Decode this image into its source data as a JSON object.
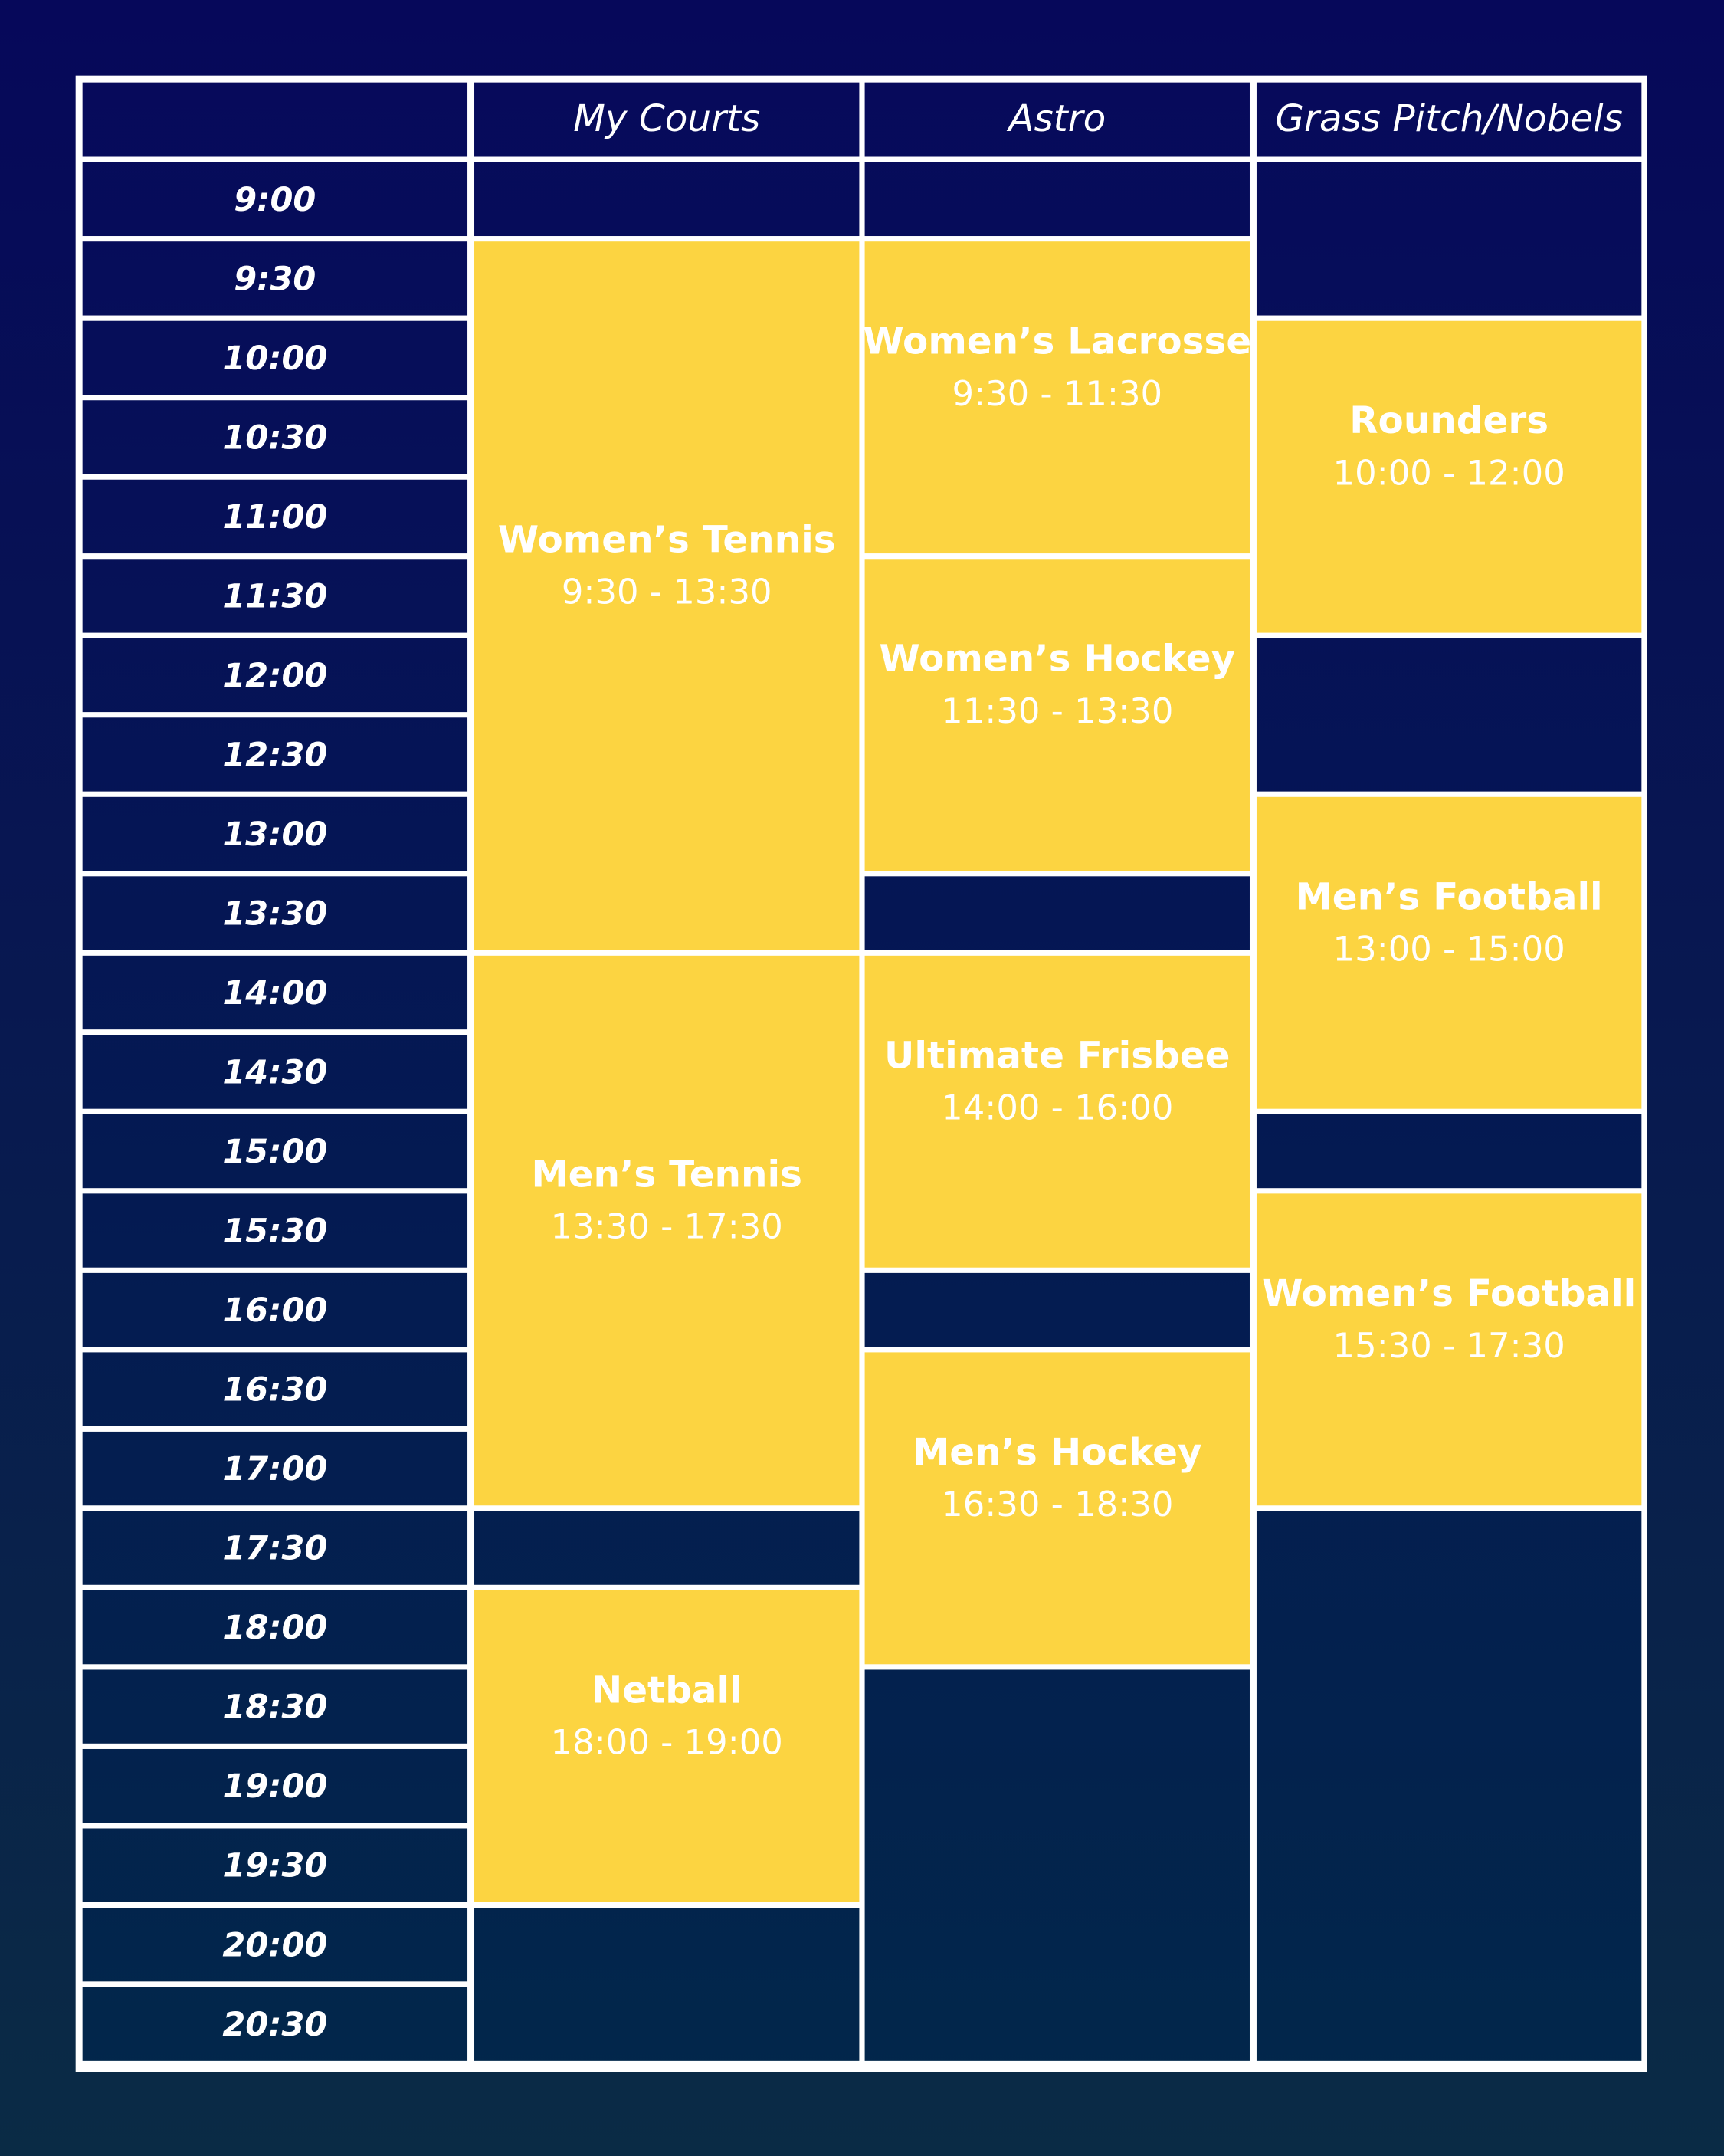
{
  "header": {
    "columns": [
      "My Courts",
      "Astro",
      "Grass Pitch/Nobels"
    ]
  },
  "times": [
    "9:00",
    "9:30",
    "10:00",
    "10:30",
    "11:00",
    "11:30",
    "12:00",
    "12:30",
    "13:00",
    "13:30",
    "14:00",
    "14:30",
    "15:00",
    "15:30",
    "16:00",
    "16:30",
    "17:00",
    "17:30",
    "18:00",
    "18:30",
    "19:00",
    "19:30",
    "20:00",
    "20:30"
  ],
  "columns": [
    {
      "events": [
        {
          "name": "Women’s Tennis",
          "time": "9:30 - 13:30"
        },
        {
          "name": "Men’s Tennis",
          "time": "13:30 - 17:30"
        },
        {
          "name": "Netball",
          "time": "18:00 - 19:00"
        }
      ]
    },
    {
      "events": [
        {
          "name": "Women’s Lacrosse",
          "time": "9:30 - 11:30"
        },
        {
          "name": "Women’s Hockey",
          "time": "11:30 - 13:30"
        },
        {
          "name": "Ultimate Frisbee",
          "time": "14:00 - 16:00"
        },
        {
          "name": "Men’s Hockey",
          "time": "16:30 - 18:30"
        }
      ]
    },
    {
      "events": [
        {
          "name": "Rounders",
          "time": "10:00 - 12:00"
        },
        {
          "name": "Men’s Football",
          "time": "13:00 - 15:00"
        },
        {
          "name": "Women’s Football",
          "time": "15:30 - 17:30"
        }
      ]
    }
  ]
}
